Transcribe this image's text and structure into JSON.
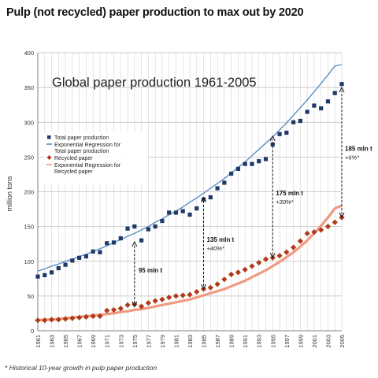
{
  "headline": "Pulp (not recycled) paper production to max out by 2020",
  "footnote": "* Historical 10-year growth in pulp paper production",
  "chart_data": {
    "type": "line",
    "title": "Global paper production 1961-2005",
    "xlabel": "",
    "ylabel": "million tons",
    "xlim": [
      1961,
      2005
    ],
    "ylim": [
      0,
      400
    ],
    "y_ticks": [
      0,
      50,
      100,
      150,
      200,
      250,
      300,
      350,
      400
    ],
    "x_ticks": [
      "1961",
      "1963",
      "1965",
      "1967",
      "1969",
      "1971",
      "1973",
      "1975",
      "1977",
      "1979",
      "1981",
      "1983",
      "1985",
      "1987",
      "1989",
      "1991",
      "1993",
      "1995",
      "1997",
      "1999",
      "2001",
      "2003",
      "2005"
    ],
    "grid": true,
    "legend_position": "upper-left",
    "legend": [
      "Total paper production",
      "Exponential Regression for Total paper production",
      "Recycled paper",
      "Exponential Regression for Recycled paper"
    ],
    "x": [
      1961,
      1962,
      1963,
      1964,
      1965,
      1966,
      1967,
      1968,
      1969,
      1970,
      1971,
      1972,
      1973,
      1974,
      1975,
      1976,
      1977,
      1978,
      1979,
      1980,
      1981,
      1982,
      1983,
      1984,
      1985,
      1986,
      1987,
      1988,
      1989,
      1990,
      1991,
      1992,
      1993,
      1994,
      1995,
      1996,
      1997,
      1998,
      1999,
      2000,
      2001,
      2002,
      2003,
      2004,
      2005
    ],
    "series": [
      {
        "name": "Total paper production",
        "color": "#1f3a68",
        "marker": "square",
        "values": [
          78,
          80,
          84,
          90,
          95,
          101,
          105,
          107,
          114,
          113,
          126,
          127,
          133,
          147,
          150,
          130,
          146,
          150,
          158,
          170,
          170,
          172,
          167,
          176,
          189,
          192,
          205,
          213,
          226,
          233,
          240,
          240,
          244,
          247,
          268,
          283,
          285,
          300,
          302,
          315,
          324,
          320,
          330,
          342,
          355
        ]
      },
      {
        "name": "Exponential Regression for Total paper production",
        "color": "#5b8fc6",
        "line": "fit",
        "values": [
          86,
          89,
          93,
          96,
          100,
          103,
          107,
          110,
          114,
          118,
          122,
          127,
          131,
          136,
          140,
          145,
          150,
          156,
          161,
          167,
          172,
          178,
          185,
          191,
          198,
          205,
          212,
          219,
          227,
          235,
          243,
          252,
          261,
          270,
          279,
          289,
          299,
          310,
          321,
          332,
          344,
          356,
          368,
          381,
          383
        ]
      },
      {
        "name": "Recycled paper",
        "color": "#b03a1a",
        "marker": "diamond",
        "values": [
          15,
          15,
          16,
          16,
          17,
          18,
          19,
          20,
          21,
          21,
          29,
          30,
          32,
          37,
          38,
          35,
          40,
          43,
          45,
          48,
          50,
          51,
          52,
          56,
          60,
          62,
          67,
          74,
          81,
          84,
          88,
          93,
          98,
          103,
          105,
          108,
          113,
          120,
          129,
          140,
          142,
          145,
          150,
          156,
          163
        ]
      },
      {
        "name": "Exponential Regression for Recycled paper",
        "color": "#f09a80",
        "line": "fit",
        "values": [
          15,
          16,
          16,
          17,
          18,
          19,
          20,
          21,
          22,
          23,
          24,
          25,
          27,
          28,
          30,
          31,
          33,
          35,
          37,
          39,
          41,
          43,
          45,
          48,
          51,
          54,
          57,
          60,
          64,
          68,
          72,
          77,
          82,
          87,
          93,
          99,
          106,
          113,
          121,
          130,
          140,
          151,
          163,
          176,
          180
        ]
      }
    ],
    "annotations": [
      {
        "x": 1975,
        "from": 35,
        "to": 128,
        "label": "95 mln t",
        "note": ""
      },
      {
        "x": 1985,
        "from": 60,
        "to": 192,
        "label": "135 mln t",
        "note": "+40%*"
      },
      {
        "x": 1995,
        "from": 105,
        "to": 280,
        "label": "175 mln t",
        "note": "+30%*"
      },
      {
        "x": 2005,
        "from": 163,
        "to": 350,
        "label": "185 mln t",
        "note": "+6%*"
      }
    ]
  }
}
